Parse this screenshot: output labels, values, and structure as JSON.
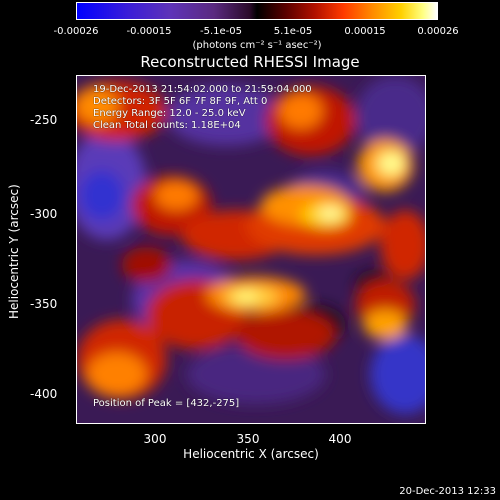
{
  "colorbar": {
    "tick_labels": [
      "-0.00026",
      "-0.00015",
      "-5.1e-05",
      "5.1e-05",
      "0.00015",
      "0.00026"
    ],
    "units": "(photons cm⁻² s⁻¹ asec⁻²)"
  },
  "plot": {
    "title": "Reconstructed RHESSI Image",
    "annotations": [
      "19-Dec-2013 21:54:02.000 to 21:59:04.000",
      "Detectors: 3F 5F 6F 7F 8F 9F, Att 0",
      "Energy Range: 12.0 - 25.0 keV",
      "Clean    Total counts: 1.18E+04"
    ],
    "peak_label": "Position of Peak = [432,-275]",
    "xlabel": "Heliocentric X (arcsec)",
    "ylabel": "Heliocentric Y (arcsec)",
    "x_ticks": [
      "300",
      "350",
      "400"
    ],
    "y_ticks": [
      "-250",
      "-300",
      "-350",
      "-400"
    ]
  },
  "timestamp": "20-Dec-2013 12:33"
}
